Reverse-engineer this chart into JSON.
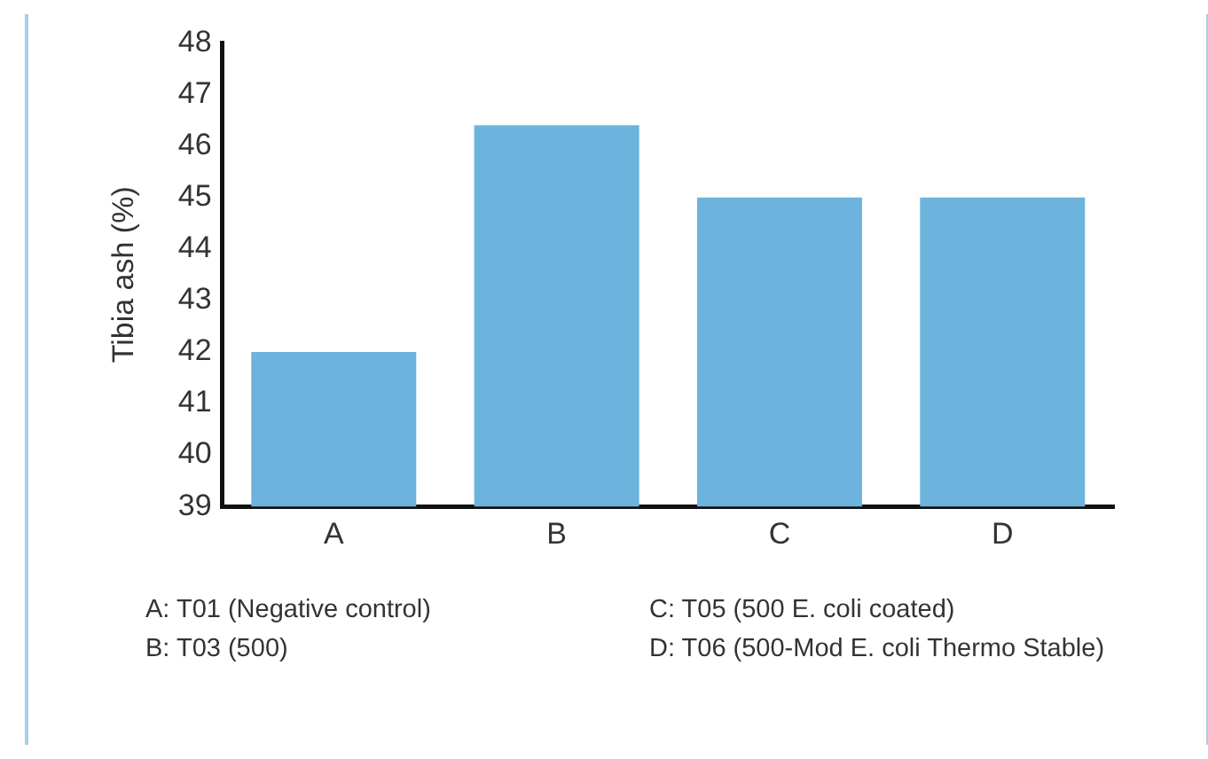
{
  "chart_data": {
    "type": "bar",
    "ylabel": "Tibia ash (%)",
    "categories": [
      "A",
      "B",
      "C",
      "D"
    ],
    "values": [
      42.0,
      46.4,
      45.0,
      45.0
    ],
    "color": "#6cb4dd",
    "ylim": [
      39,
      48
    ],
    "yticks": [
      39,
      40,
      41,
      42,
      43,
      44,
      45,
      46,
      47,
      48
    ],
    "grid": false,
    "annotations": [
      "A: T01 (Negative control)",
      "C: T05 (500 E. coli coated)",
      "B: T03 (500)",
      "D: T06 (500-Mod E. coli Thermo Stable)"
    ]
  }
}
